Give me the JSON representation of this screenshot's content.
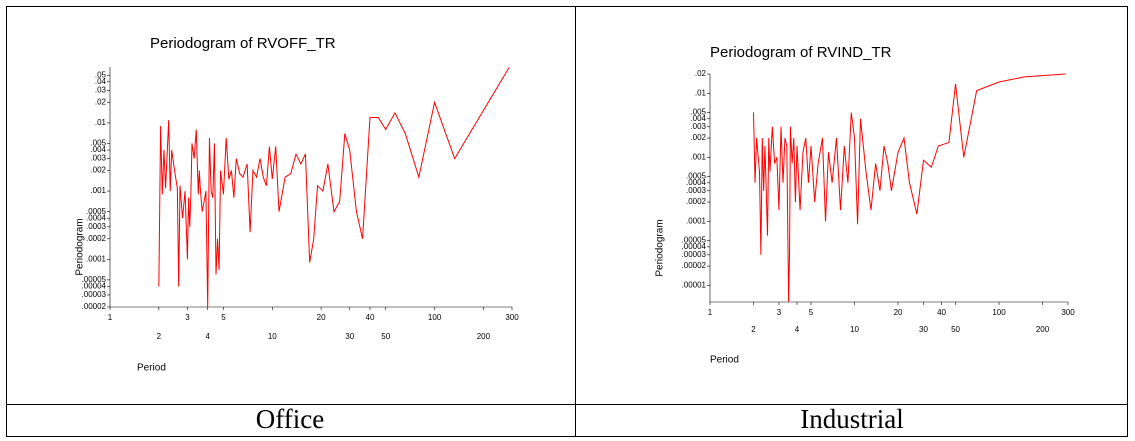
{
  "chart_data": [
    {
      "type": "line",
      "title": "Periodogram of RVOFF_TR",
      "x_label": "Period",
      "y_label": "Periodogram",
      "color": "#ff0000",
      "log_x": true,
      "log_y": true,
      "xlim": [
        1,
        300
      ],
      "xticks": [
        1,
        2,
        3,
        4,
        5,
        10,
        20,
        30,
        40,
        50,
        100,
        200,
        300
      ],
      "ylim": [
        2e-05,
        0.066
      ],
      "yticks": [
        {
          "value": 0.05,
          "label": ".05"
        },
        {
          "value": 0.04,
          "label": ".04"
        },
        {
          "value": 0.03,
          "label": ".03"
        },
        {
          "value": 0.02,
          "label": ".02"
        },
        {
          "value": 0.01,
          "label": ".01"
        },
        {
          "value": 0.005,
          "label": ".005"
        },
        {
          "value": 0.004,
          "label": ".004"
        },
        {
          "value": 0.003,
          "label": ".003"
        },
        {
          "value": 0.002,
          "label": ".002"
        },
        {
          "value": 0.001,
          "label": ".001"
        },
        {
          "value": 0.0005,
          "label": ".0005"
        },
        {
          "value": 0.0004,
          "label": ".0004"
        },
        {
          "value": 0.0003,
          "label": ".0003"
        },
        {
          "value": 0.0002,
          "label": ".0002"
        },
        {
          "value": 0.0001,
          "label": ".0001"
        },
        {
          "value": 5e-05,
          "label": ".00005"
        },
        {
          "value": 4e-05,
          "label": ".00004"
        },
        {
          "value": 3e-05,
          "label": ".00003"
        },
        {
          "value": 2e-05,
          "label": ".00002"
        }
      ],
      "x": [
        2.0,
        2.05,
        2.1,
        2.15,
        2.2,
        2.3,
        2.35,
        2.4,
        2.5,
        2.6,
        2.65,
        2.7,
        2.8,
        2.9,
        3.0,
        3.05,
        3.1,
        3.15,
        3.2,
        3.3,
        3.4,
        3.5,
        3.55,
        3.6,
        3.7,
        3.8,
        3.9,
        4.0,
        4.1,
        4.2,
        4.3,
        4.4,
        4.5,
        4.6,
        4.7,
        4.8,
        5.0,
        5.2,
        5.4,
        5.6,
        5.8,
        6.0,
        6.3,
        6.6,
        7.0,
        7.3,
        7.6,
        8.0,
        8.4,
        8.8,
        9.2,
        9.6,
        10,
        10.5,
        11,
        12,
        13,
        14,
        15,
        16,
        17,
        18,
        19,
        20.5,
        22,
        24,
        26,
        28,
        30,
        33,
        36,
        40,
        45,
        50,
        57,
        66,
        80,
        100,
        133,
        288
      ],
      "values": [
        4e-05,
        0.009,
        0.0009,
        0.004,
        0.0011,
        0.011,
        0.001,
        0.004,
        0.002,
        0.0011,
        4e-05,
        0.0012,
        0.0004,
        0.001,
        0.0001,
        0.0008,
        0.0003,
        0.0009,
        0.005,
        0.003,
        0.008,
        0.0009,
        0.002,
        0.0011,
        0.0005,
        0.0007,
        0.001,
        2e-05,
        0.006,
        0.001,
        0.0008,
        0.005,
        6e-05,
        0.0002,
        7e-05,
        0.002,
        0.0009,
        0.006,
        0.0015,
        0.002,
        0.0008,
        0.003,
        0.0018,
        0.0016,
        0.0025,
        0.00025,
        0.002,
        0.0016,
        0.003,
        0.0016,
        0.0012,
        0.0045,
        0.0015,
        0.0045,
        0.0005,
        0.0016,
        0.0018,
        0.0035,
        0.0025,
        0.0035,
        9e-05,
        0.0002,
        0.0012,
        0.001,
        0.0025,
        0.0005,
        0.0007,
        0.007,
        0.004,
        0.0005,
        0.0002,
        0.012,
        0.012,
        0.008,
        0.014,
        0.007,
        0.0016,
        0.02,
        0.003,
        0.065
      ]
    },
    {
      "type": "line",
      "title": "Periodogram of RVIND_TR",
      "x_label": "Period",
      "y_label": "Periodogram",
      "color": "#ff0000",
      "log_x": true,
      "log_y": true,
      "xlim": [
        1,
        300
      ],
      "xticks": [
        1,
        2,
        3,
        4,
        5,
        10,
        20,
        30,
        40,
        50,
        100,
        200,
        300
      ],
      "ylim": [
        5.5e-06,
        0.02
      ],
      "yticks": [
        {
          "value": 0.02,
          "label": ".02"
        },
        {
          "value": 0.01,
          "label": ".01"
        },
        {
          "value": 0.005,
          "label": ".005"
        },
        {
          "value": 0.004,
          "label": ".004"
        },
        {
          "value": 0.003,
          "label": ".003"
        },
        {
          "value": 0.002,
          "label": ".002"
        },
        {
          "value": 0.001,
          "label": ".001"
        },
        {
          "value": 0.0005,
          "label": ".0005"
        },
        {
          "value": 0.0004,
          "label": ".0004"
        },
        {
          "value": 0.0003,
          "label": ".0003"
        },
        {
          "value": 0.0002,
          "label": ".0002"
        },
        {
          "value": 0.0001,
          "label": ".0001"
        },
        {
          "value": 5e-05,
          "label": ".00005"
        },
        {
          "value": 4e-05,
          "label": ".00004"
        },
        {
          "value": 3e-05,
          "label": ".00003"
        },
        {
          "value": 2e-05,
          "label": ".00002"
        },
        {
          "value": 1e-05,
          "label": ".00001"
        }
      ],
      "x": [
        2.0,
        2.05,
        2.1,
        2.2,
        2.25,
        2.3,
        2.35,
        2.4,
        2.5,
        2.55,
        2.6,
        2.7,
        2.8,
        2.9,
        3.0,
        3.1,
        3.2,
        3.3,
        3.4,
        3.5,
        3.55,
        3.6,
        3.7,
        3.8,
        3.9,
        4.0,
        4.2,
        4.4,
        4.6,
        4.8,
        5.0,
        5.3,
        5.6,
        6.0,
        6.3,
        6.6,
        7.0,
        7.5,
        8.0,
        8.5,
        9.0,
        9.5,
        10,
        10.5,
        11,
        12,
        13,
        14,
        15,
        16,
        17,
        18,
        20,
        22,
        24,
        27,
        30,
        34,
        38,
        45,
        50,
        57,
        70,
        100,
        150,
        288
      ],
      "values": [
        0.005,
        0.0004,
        0.002,
        0.0006,
        3e-05,
        0.002,
        0.0003,
        0.0015,
        6e-05,
        0.002,
        0.0006,
        0.003,
        0.0008,
        0.001,
        0.00015,
        0.003,
        0.0004,
        0.002,
        0.0015,
        5.5e-06,
        3e-05,
        0.003,
        0.0008,
        0.002,
        0.0002,
        0.0015,
        0.00015,
        0.0012,
        0.002,
        0.0004,
        0.0015,
        0.0002,
        0.0008,
        0.002,
        0.0001,
        0.0012,
        0.0004,
        0.002,
        0.00015,
        0.0015,
        0.0004,
        0.005,
        0.002,
        9e-05,
        0.004,
        0.0006,
        0.00015,
        0.0008,
        0.0003,
        0.0015,
        0.0008,
        0.0003,
        0.0012,
        0.002,
        0.0004,
        0.00013,
        0.0009,
        0.0007,
        0.0015,
        0.0017,
        0.014,
        0.001,
        0.011,
        0.015,
        0.018,
        0.02
      ]
    }
  ],
  "captions": [
    "Office",
    "Industrial"
  ]
}
